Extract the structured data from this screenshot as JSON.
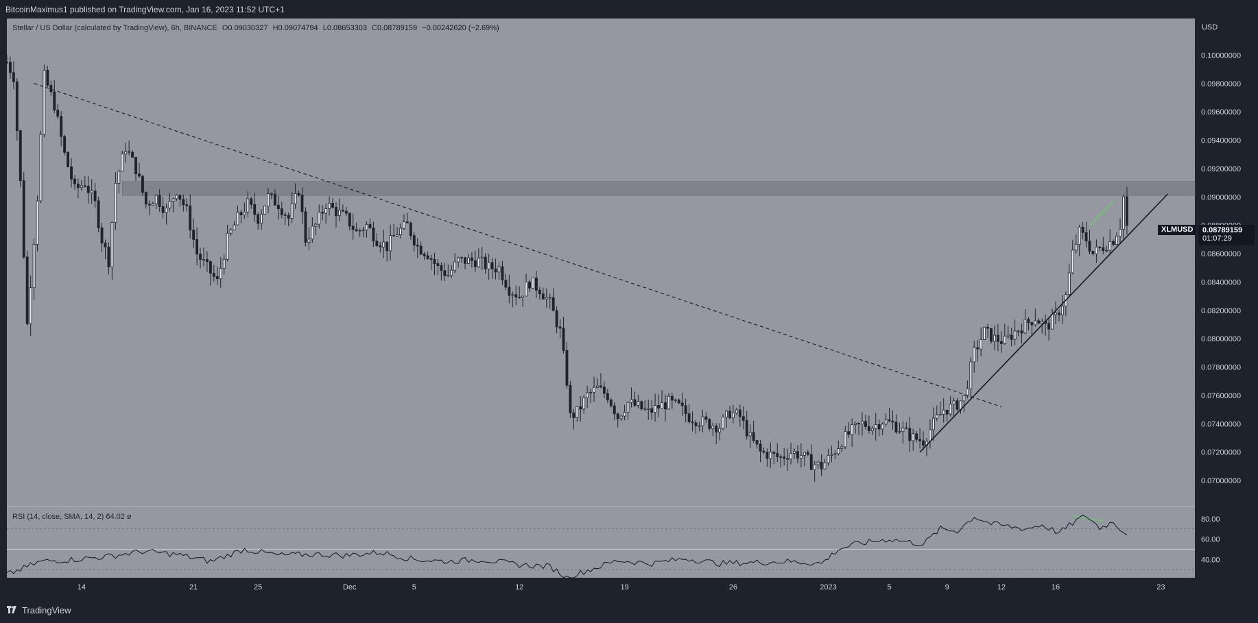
{
  "header": {
    "publisher": "BitcoinMaximus1 published on TradingView.com, Jan 16, 2023 11:52 UTC+1"
  },
  "legend": {
    "symbol": "Stellar / US Dollar (calculated by TradingView), 6h, BINANCE",
    "o_label": "O",
    "o_value": "0.09030327",
    "h_label": "H",
    "h_value": "0.09074794",
    "l_label": "L",
    "l_value": "0.08653303",
    "c_label": "C",
    "c_value": "0.08789159",
    "change": "−0.00242620 (−2.69%)"
  },
  "rsi_legend": {
    "text": "RSI (14, close, SMA, 14, 2)  64.02  ø"
  },
  "price_axis": {
    "currency": "USD"
  },
  "last_price": {
    "symbol": "XLMUSD",
    "price": "0.08789159",
    "countdown": "01:07:29"
  },
  "footer": {
    "brand": "TradingView"
  },
  "colors": {
    "background": "#1e222d",
    "chart_bg": "#9598a1",
    "resistance_band": "#80838d",
    "divergence": "#5fd35f",
    "candle": "#1e222d"
  },
  "chart_data": {
    "type": "candlestick",
    "title": "Stellar / US Dollar (calculated by TradingView), 6h, BINANCE",
    "price_ylim": [
      0.0686,
      0.102
    ],
    "price_ticks": [
      "0.07000000",
      "0.07200000",
      "0.07400000",
      "0.07600000",
      "0.07800000",
      "0.08000000",
      "0.08200000",
      "0.08400000",
      "0.08600000",
      "0.08800000",
      "0.09000000",
      "0.09200000",
      "0.09400000",
      "0.09600000",
      "0.09800000",
      "0.10000000"
    ],
    "x_tick_labels": [
      "14",
      "21",
      "25",
      "Dec",
      "5",
      "12",
      "19",
      "26",
      "2023",
      "5",
      "9",
      "12",
      "16",
      "23"
    ],
    "price_path": [
      {
        "x": 0,
        "y": 0.0995
      },
      {
        "x": 2,
        "y": 0.0985
      },
      {
        "x": 4,
        "y": 0.091
      },
      {
        "x": 6,
        "y": 0.081
      },
      {
        "x": 9,
        "y": 0.09
      },
      {
        "x": 11,
        "y": 0.0985
      },
      {
        "x": 14,
        "y": 0.0965
      },
      {
        "x": 17,
        "y": 0.093
      },
      {
        "x": 20,
        "y": 0.0905
      },
      {
        "x": 23,
        "y": 0.091
      },
      {
        "x": 26,
        "y": 0.0895
      },
      {
        "x": 28,
        "y": 0.087
      },
      {
        "x": 30,
        "y": 0.0855
      },
      {
        "x": 32,
        "y": 0.091
      },
      {
        "x": 35,
        "y": 0.0935
      },
      {
        "x": 38,
        "y": 0.092
      },
      {
        "x": 41,
        "y": 0.0895
      },
      {
        "x": 44,
        "y": 0.09
      },
      {
        "x": 47,
        "y": 0.089
      },
      {
        "x": 50,
        "y": 0.0905
      },
      {
        "x": 53,
        "y": 0.089
      },
      {
        "x": 56,
        "y": 0.086
      },
      {
        "x": 59,
        "y": 0.085
      },
      {
        "x": 62,
        "y": 0.084
      },
      {
        "x": 65,
        "y": 0.087
      },
      {
        "x": 68,
        "y": 0.0885
      },
      {
        "x": 71,
        "y": 0.0895
      },
      {
        "x": 74,
        "y": 0.0885
      },
      {
        "x": 77,
        "y": 0.09
      },
      {
        "x": 80,
        "y": 0.0895
      },
      {
        "x": 83,
        "y": 0.0885
      },
      {
        "x": 86,
        "y": 0.0905
      },
      {
        "x": 88,
        "y": 0.087
      },
      {
        "x": 91,
        "y": 0.088
      },
      {
        "x": 94,
        "y": 0.0895
      },
      {
        "x": 97,
        "y": 0.089
      },
      {
        "x": 100,
        "y": 0.0885
      },
      {
        "x": 103,
        "y": 0.0875
      },
      {
        "x": 106,
        "y": 0.088
      },
      {
        "x": 109,
        "y": 0.087
      },
      {
        "x": 112,
        "y": 0.0865
      },
      {
        "x": 115,
        "y": 0.0875
      },
      {
        "x": 118,
        "y": 0.088
      },
      {
        "x": 121,
        "y": 0.0865
      },
      {
        "x": 124,
        "y": 0.086
      },
      {
        "x": 127,
        "y": 0.085
      },
      {
        "x": 130,
        "y": 0.0845
      },
      {
        "x": 133,
        "y": 0.0855
      },
      {
        "x": 136,
        "y": 0.0855
      },
      {
        "x": 139,
        "y": 0.0855
      },
      {
        "x": 142,
        "y": 0.085
      },
      {
        "x": 145,
        "y": 0.085
      },
      {
        "x": 148,
        "y": 0.0835
      },
      {
        "x": 151,
        "y": 0.083
      },
      {
        "x": 154,
        "y": 0.084
      },
      {
        "x": 157,
        "y": 0.0835
      },
      {
        "x": 160,
        "y": 0.0825
      },
      {
        "x": 163,
        "y": 0.0805
      },
      {
        "x": 165,
        "y": 0.077
      },
      {
        "x": 166,
        "y": 0.0745
      },
      {
        "x": 168,
        "y": 0.0748
      },
      {
        "x": 171,
        "y": 0.076
      },
      {
        "x": 174,
        "y": 0.0765
      },
      {
        "x": 177,
        "y": 0.076
      },
      {
        "x": 180,
        "y": 0.0745
      },
      {
        "x": 183,
        "y": 0.0755
      },
      {
        "x": 186,
        "y": 0.0752
      },
      {
        "x": 189,
        "y": 0.0748
      },
      {
        "x": 192,
        "y": 0.0752
      },
      {
        "x": 195,
        "y": 0.0755
      },
      {
        "x": 198,
        "y": 0.0752
      },
      {
        "x": 201,
        "y": 0.0745
      },
      {
        "x": 204,
        "y": 0.0742
      },
      {
        "x": 207,
        "y": 0.074
      },
      {
        "x": 210,
        "y": 0.0738
      },
      {
        "x": 213,
        "y": 0.0748
      },
      {
        "x": 216,
        "y": 0.0745
      },
      {
        "x": 219,
        "y": 0.073
      },
      {
        "x": 222,
        "y": 0.072
      },
      {
        "x": 225,
        "y": 0.0718
      },
      {
        "x": 228,
        "y": 0.0716
      },
      {
        "x": 231,
        "y": 0.072
      },
      {
        "x": 234,
        "y": 0.0718
      },
      {
        "x": 237,
        "y": 0.0712
      },
      {
        "x": 240,
        "y": 0.071
      },
      {
        "x": 243,
        "y": 0.0718
      },
      {
        "x": 246,
        "y": 0.0728
      },
      {
        "x": 249,
        "y": 0.0735
      },
      {
        "x": 252,
        "y": 0.074
      },
      {
        "x": 255,
        "y": 0.0738
      },
      {
        "x": 258,
        "y": 0.0742
      },
      {
        "x": 261,
        "y": 0.074
      },
      {
        "x": 264,
        "y": 0.0735
      },
      {
        "x": 267,
        "y": 0.073
      },
      {
        "x": 270,
        "y": 0.0728
      },
      {
        "x": 273,
        "y": 0.074
      },
      {
        "x": 276,
        "y": 0.075
      },
      {
        "x": 279,
        "y": 0.0752
      },
      {
        "x": 282,
        "y": 0.0758
      },
      {
        "x": 285,
        "y": 0.079
      },
      {
        "x": 288,
        "y": 0.0805
      },
      {
        "x": 291,
        "y": 0.08
      },
      {
        "x": 294,
        "y": 0.0798
      },
      {
        "x": 297,
        "y": 0.0805
      },
      {
        "x": 300,
        "y": 0.081
      },
      {
        "x": 303,
        "y": 0.0815
      },
      {
        "x": 306,
        "y": 0.0808
      },
      {
        "x": 309,
        "y": 0.0815
      },
      {
        "x": 312,
        "y": 0.083
      },
      {
        "x": 314,
        "y": 0.086
      },
      {
        "x": 316,
        "y": 0.0875
      },
      {
        "x": 318,
        "y": 0.087
      },
      {
        "x": 320,
        "y": 0.086
      },
      {
        "x": 323,
        "y": 0.0865
      },
      {
        "x": 326,
        "y": 0.087
      },
      {
        "x": 328,
        "y": 0.088
      },
      {
        "x": 329,
        "y": 0.09
      },
      {
        "x": 330,
        "y": 0.0879
      }
    ],
    "rsi": {
      "label": "RSI (14, close, SMA, 14, 2)",
      "last": 64.02,
      "ylim": [
        22,
        92
      ],
      "ticks": [
        "80.00",
        "60.00",
        "40.00"
      ],
      "levels": [
        70,
        50,
        30
      ],
      "values": [
        {
          "x": 0,
          "y": 25
        },
        {
          "x": 10,
          "y": 38
        },
        {
          "x": 20,
          "y": 40
        },
        {
          "x": 30,
          "y": 43
        },
        {
          "x": 40,
          "y": 48
        },
        {
          "x": 50,
          "y": 45
        },
        {
          "x": 60,
          "y": 38
        },
        {
          "x": 70,
          "y": 50
        },
        {
          "x": 80,
          "y": 44
        },
        {
          "x": 90,
          "y": 45
        },
        {
          "x": 100,
          "y": 44
        },
        {
          "x": 110,
          "y": 47
        },
        {
          "x": 120,
          "y": 40
        },
        {
          "x": 130,
          "y": 38
        },
        {
          "x": 140,
          "y": 40
        },
        {
          "x": 150,
          "y": 35
        },
        {
          "x": 160,
          "y": 33
        },
        {
          "x": 165,
          "y": 22
        },
        {
          "x": 170,
          "y": 28
        },
        {
          "x": 180,
          "y": 39
        },
        {
          "x": 190,
          "y": 36
        },
        {
          "x": 200,
          "y": 41
        },
        {
          "x": 210,
          "y": 36
        },
        {
          "x": 220,
          "y": 37
        },
        {
          "x": 230,
          "y": 38
        },
        {
          "x": 240,
          "y": 36
        },
        {
          "x": 245,
          "y": 50
        },
        {
          "x": 250,
          "y": 55
        },
        {
          "x": 260,
          "y": 60
        },
        {
          "x": 270,
          "y": 55
        },
        {
          "x": 275,
          "y": 70
        },
        {
          "x": 280,
          "y": 68
        },
        {
          "x": 285,
          "y": 82
        },
        {
          "x": 290,
          "y": 75
        },
        {
          "x": 300,
          "y": 70
        },
        {
          "x": 305,
          "y": 74
        },
        {
          "x": 310,
          "y": 66
        },
        {
          "x": 315,
          "y": 78
        },
        {
          "x": 318,
          "y": 83
        },
        {
          "x": 322,
          "y": 71
        },
        {
          "x": 326,
          "y": 77
        },
        {
          "x": 330,
          "y": 64
        }
      ]
    },
    "annotations": [
      {
        "type": "descending-trendline",
        "style": "dashed",
        "from": {
          "x": 8,
          "y": 0.098
        },
        "to": {
          "x": 293,
          "y": 0.0752
        }
      },
      {
        "type": "ascending-support",
        "style": "solid",
        "from": {
          "x": 269,
          "y": 0.072
        },
        "to": {
          "x": 342,
          "y": 0.0902
        }
      },
      {
        "type": "resistance-band",
        "from_y": 0.0901,
        "to_y": 0.0911,
        "x_start": 34
      },
      {
        "type": "bearish-divergence-price",
        "from": {
          "x": 319,
          "y": 0.088
        },
        "to": {
          "x": 326,
          "y": 0.0897
        }
      },
      {
        "type": "bearish-divergence-rsi",
        "from": {
          "x": 314,
          "y": 83
        },
        "to": {
          "x": 323,
          "y": 78
        }
      }
    ],
    "x_range": [
      0,
      348
    ],
    "x_tick_positions": [
      22,
      55,
      74,
      101,
      120,
      151,
      182,
      214,
      242,
      260,
      277,
      293,
      309,
      340
    ]
  }
}
